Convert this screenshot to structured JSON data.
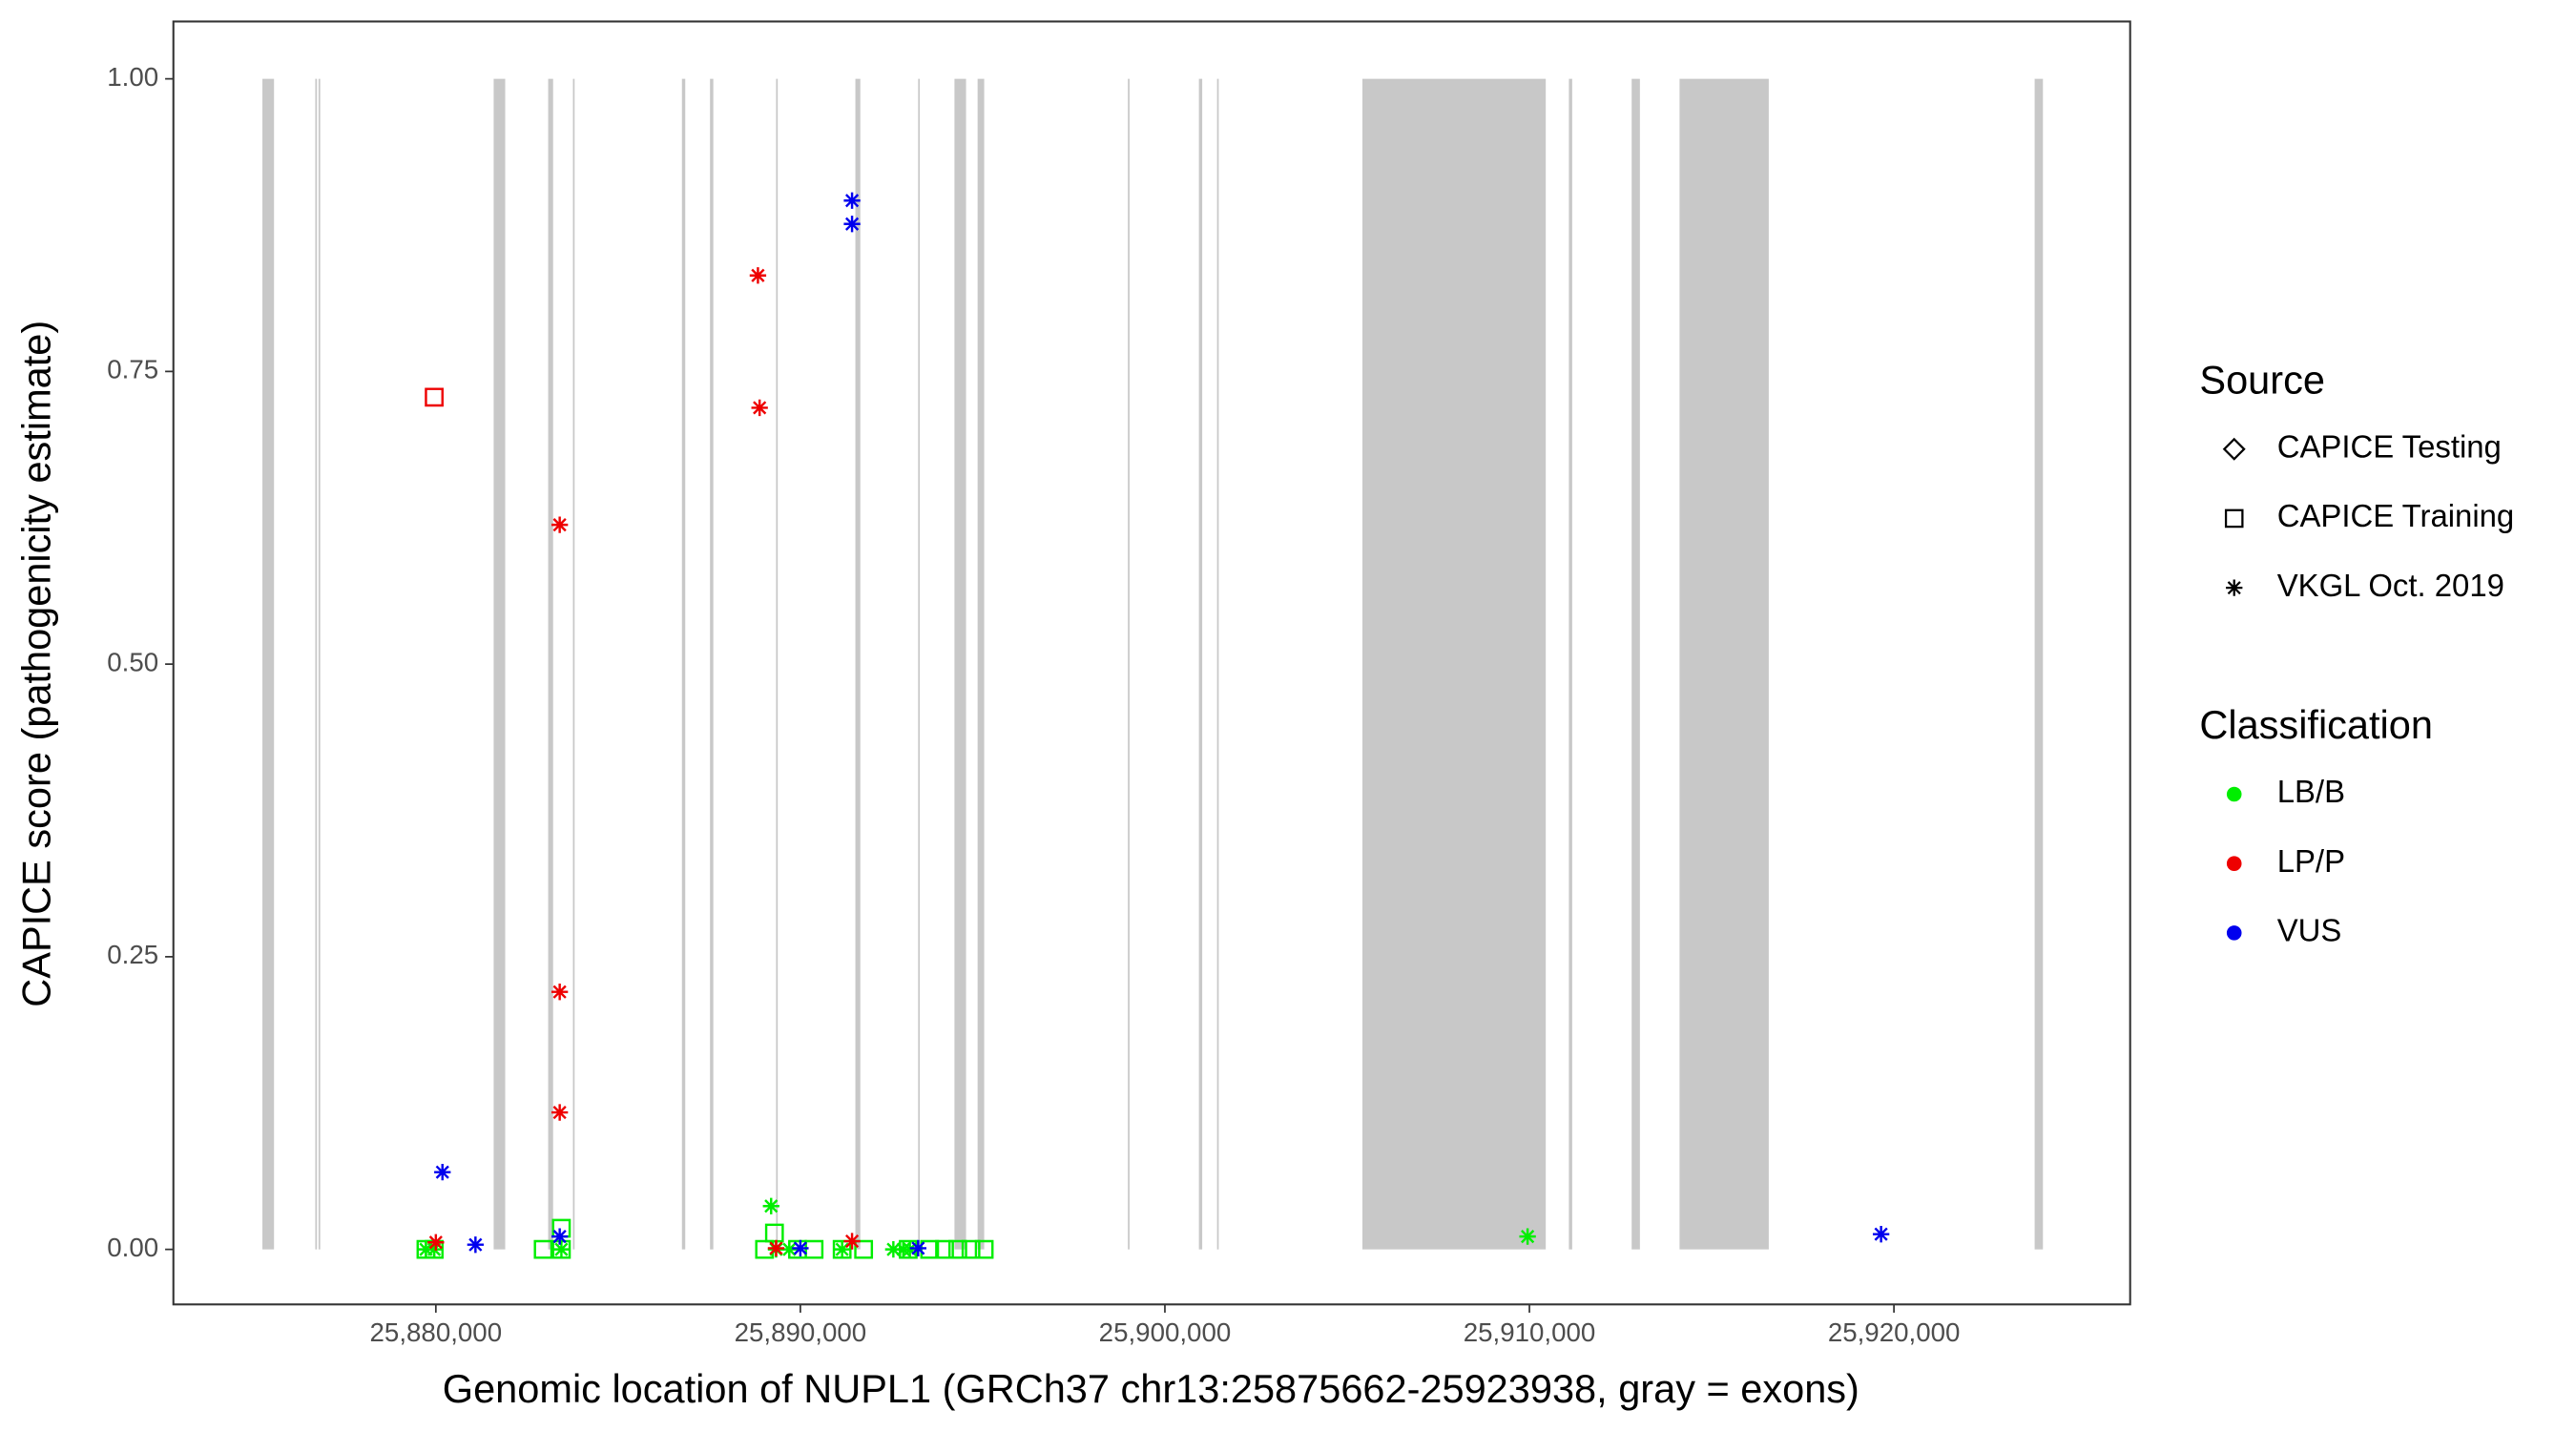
{
  "chart_data": {
    "type": "scatter",
    "x_label": "Genomic location of NUPL1 (GRCh37 chr13:25875662-25923938, gray = exons)",
    "y_label": "CAPICE score (pathogenicity estimate)",
    "xlim": [
      25872800,
      25926480
    ],
    "ylim": [
      -0.047,
      1.049
    ],
    "xticks": [
      {
        "value": 25880000,
        "label": "25,880,000"
      },
      {
        "value": 25890000,
        "label": "25,890,000"
      },
      {
        "value": 25900000,
        "label": "25,900,000"
      },
      {
        "value": 25910000,
        "label": "25,910,000"
      },
      {
        "value": 25920000,
        "label": "25,920,000"
      }
    ],
    "yticks": [
      {
        "value": 0,
        "label": "0.00"
      },
      {
        "value": 0.25,
        "label": "0.25"
      },
      {
        "value": 0.5,
        "label": "0.50"
      },
      {
        "value": 0.75,
        "label": "0.75"
      },
      {
        "value": 1,
        "label": "1.00"
      }
    ],
    "exon_color": "#c8c8c8",
    "exons": [
      [
        25875242,
        25875560
      ],
      [
        25876692,
        25876738
      ],
      [
        25876783,
        25876828
      ],
      [
        25881586,
        25881903
      ],
      [
        25883081,
        25883217
      ],
      [
        25883761,
        25883806
      ],
      [
        25886751,
        25886842
      ],
      [
        25887521,
        25887612
      ],
      [
        25889334,
        25889379
      ],
      [
        25891509,
        25891645
      ],
      [
        25893231,
        25893276
      ],
      [
        25894227,
        25894545
      ],
      [
        25894862,
        25895043
      ],
      [
        25898985,
        25899030
      ],
      [
        25900933,
        25901024
      ],
      [
        25901431,
        25901476
      ],
      [
        25905419,
        25910448
      ],
      [
        25911083,
        25911174
      ],
      [
        25912805,
        25913031
      ],
      [
        25914119,
        25916566
      ],
      [
        25923860,
        25924087
      ]
    ],
    "source_legend": {
      "title": "Source",
      "entries": [
        {
          "name": "CAPICE Testing",
          "shape": "diamond"
        },
        {
          "name": "CAPICE Training",
          "shape": "square"
        },
        {
          "name": "VKGL Oct. 2019",
          "shape": "asterisk"
        }
      ]
    },
    "classification_legend": {
      "title": "Classification",
      "entries": [
        {
          "name": "LB/B",
          "color": "#00ee00"
        },
        {
          "name": "LP/P",
          "color": "#ee0000"
        },
        {
          "name": "VUS",
          "color": "#0000ee"
        }
      ]
    },
    "series": [
      {
        "source": "CAPICE Training",
        "classification": "LB/B",
        "x": [
          25879728,
          25879955,
          25882945,
          25883444,
          25883444,
          25889017,
          25889289,
          25889923,
          25890376,
          25891146,
          25891735,
          25892959,
          25893547,
          25893955,
          25894318,
          25894680,
          25895043
        ],
        "y": [
          0,
          0,
          0,
          0.018,
          0,
          0,
          0.014,
          0,
          0,
          0,
          0,
          0,
          0,
          0,
          0,
          0,
          0
        ]
      },
      {
        "source": "CAPICE Training",
        "classification": "LP/P",
        "x": [
          25879955
        ],
        "y": [
          0.728
        ]
      },
      {
        "source": "VKGL Oct. 2019",
        "classification": "LB/B",
        "x": [
          25889198,
          25909950,
          25879728,
          25879955,
          25883444,
          25889334,
          25889697,
          25891146,
          25892551,
          25892823,
          25893004
        ],
        "y": [
          0.037,
          0.011,
          0,
          0,
          0,
          0,
          0,
          0,
          0,
          0,
          0
        ]
      },
      {
        "source": "VKGL Oct. 2019",
        "classification": "LP/P",
        "x": [
          25888836,
          25888882,
          25883398,
          25883398,
          25883398,
          25880000,
          25889334,
          25891418
        ],
        "y": [
          0.832,
          0.719,
          0.619,
          0.22,
          0.117,
          0.006,
          0.001,
          0.007
        ]
      },
      {
        "source": "VKGL Oct. 2019",
        "classification": "VUS",
        "x": [
          25891418,
          25891418,
          25880181,
          25881087,
          25883398,
          25890000,
          25893231,
          25919647
        ],
        "y": [
          0.896,
          0.876,
          0.066,
          0.004,
          0.011,
          0.001,
          0.001,
          0.013
        ]
      }
    ]
  }
}
